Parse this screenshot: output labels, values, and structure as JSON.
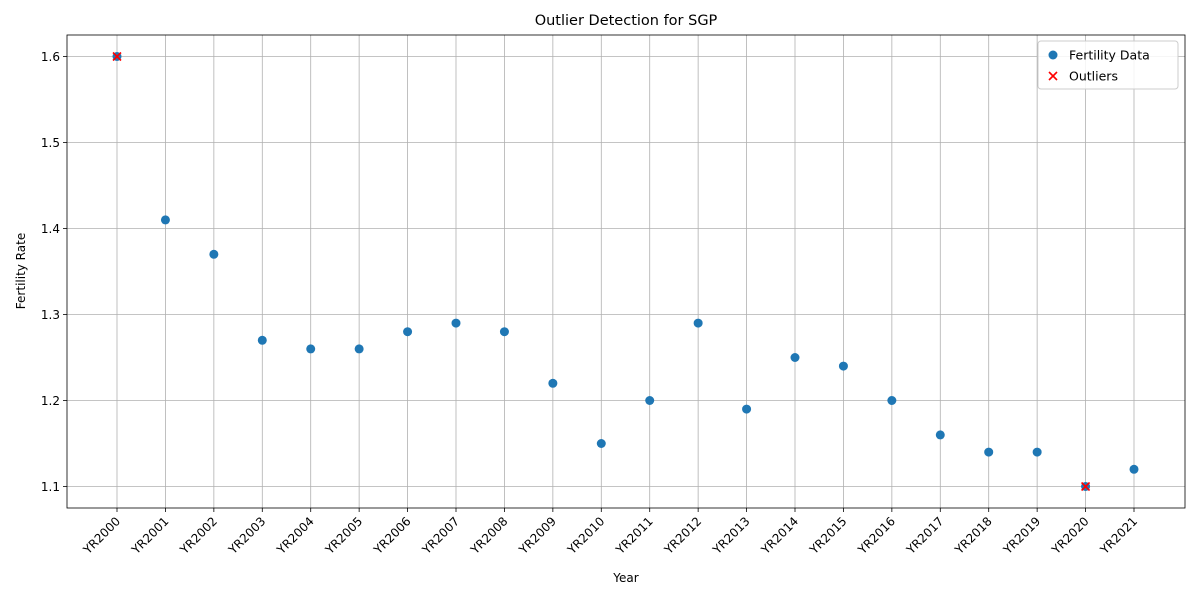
{
  "chart_data": {
    "type": "scatter",
    "title": "Outlier Detection for SGP",
    "xlabel": "Year",
    "ylabel": "Fertility Rate",
    "categories": [
      "YR2000",
      "YR2001",
      "YR2002",
      "YR2003",
      "YR2004",
      "YR2005",
      "YR2006",
      "YR2007",
      "YR2008",
      "YR2009",
      "YR2010",
      "YR2011",
      "YR2012",
      "YR2013",
      "YR2014",
      "YR2015",
      "YR2016",
      "YR2017",
      "YR2018",
      "YR2019",
      "YR2020",
      "YR2021"
    ],
    "series": [
      {
        "name": "Fertility Data",
        "marker": "circle",
        "color": "#1f77b4",
        "values": [
          1.6,
          1.41,
          1.37,
          1.27,
          1.26,
          1.26,
          1.28,
          1.29,
          1.28,
          1.22,
          1.15,
          1.2,
          1.29,
          1.19,
          1.25,
          1.24,
          1.2,
          1.16,
          1.14,
          1.14,
          1.1,
          1.12
        ]
      },
      {
        "name": "Outliers",
        "marker": "x",
        "color": "#ff0000",
        "points": [
          {
            "x": "YR2000",
            "y": 1.6
          },
          {
            "x": "YR2020",
            "y": 1.1
          }
        ]
      }
    ],
    "ylim": [
      1.075,
      1.625
    ],
    "yticks": [
      1.1,
      1.2,
      1.3,
      1.4,
      1.5,
      1.6
    ],
    "grid": true,
    "legend_position": "top-right"
  }
}
